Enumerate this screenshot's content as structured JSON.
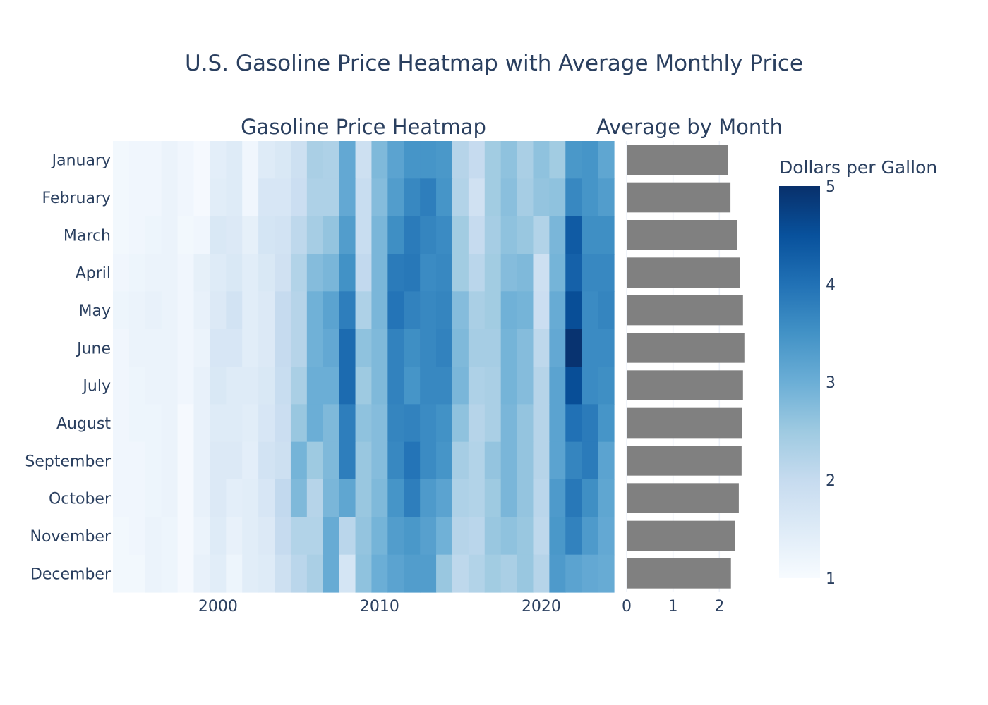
{
  "title": "U.S. Gasoline Price Heatmap with Average Monthly Price",
  "subplot_titles": {
    "heatmap": "Gasoline Price Heatmap",
    "bars": "Average by Month"
  },
  "colorbar": {
    "title": "Dollars per Gallon",
    "range": [
      1,
      5
    ],
    "ticks": [
      "1",
      "2",
      "3",
      "4",
      "5"
    ],
    "colorscale": [
      "#f7fbff",
      "#deebf7",
      "#c6dbef",
      "#9ecae1",
      "#6baed6",
      "#4292c6",
      "#2171b5",
      "#08519c",
      "#08306b"
    ]
  },
  "colors": {
    "bar": "#808080",
    "grid": "#ebf0f8"
  },
  "chart_data": [
    {
      "type": "heatmap",
      "title": "Gasoline Price Heatmap",
      "x_ticks": [
        "2000",
        "2010",
        "2020"
      ],
      "x": [
        1994,
        1995,
        1996,
        1997,
        1998,
        1999,
        2000,
        2001,
        2002,
        2003,
        2004,
        2005,
        2006,
        2007,
        2008,
        2009,
        2010,
        2011,
        2012,
        2013,
        2014,
        2015,
        2016,
        2017,
        2018,
        2019,
        2020,
        2021,
        2022,
        2023,
        2024
      ],
      "y": [
        "January",
        "February",
        "March",
        "April",
        "May",
        "June",
        "July",
        "August",
        "September",
        "October",
        "November",
        "December"
      ],
      "z": [
        [
          1.1,
          1.15,
          1.15,
          1.25,
          1.15,
          1.05,
          1.4,
          1.5,
          1.15,
          1.5,
          1.6,
          1.85,
          2.35,
          2.3,
          3.1,
          1.85,
          2.8,
          3.2,
          3.45,
          3.45,
          3.4,
          2.2,
          2.0,
          2.45,
          2.65,
          2.35,
          2.65,
          2.45,
          3.4,
          3.45,
          3.15
        ],
        [
          1.1,
          1.15,
          1.15,
          1.25,
          1.15,
          1.05,
          1.45,
          1.5,
          1.15,
          1.65,
          1.65,
          1.9,
          2.3,
          2.3,
          3.1,
          1.95,
          2.75,
          3.3,
          3.65,
          3.8,
          3.45,
          2.25,
          1.8,
          2.45,
          2.7,
          2.4,
          2.6,
          2.65,
          3.65,
          3.45,
          3.3
        ],
        [
          1.1,
          1.15,
          1.2,
          1.25,
          1.1,
          1.15,
          1.6,
          1.55,
          1.35,
          1.7,
          1.75,
          2.1,
          2.4,
          2.6,
          3.3,
          1.95,
          2.85,
          3.55,
          3.85,
          3.7,
          3.6,
          2.45,
          2.0,
          2.4,
          2.65,
          2.55,
          2.25,
          2.85,
          4.35,
          3.55,
          3.55
        ],
        [
          1.15,
          1.2,
          1.25,
          1.25,
          1.15,
          1.35,
          1.5,
          1.6,
          1.45,
          1.6,
          1.8,
          2.25,
          2.75,
          2.85,
          3.5,
          2.05,
          2.85,
          3.85,
          3.9,
          3.6,
          3.65,
          2.45,
          2.15,
          2.45,
          2.75,
          2.8,
          1.85,
          2.9,
          4.25,
          3.65,
          3.65
        ],
        [
          1.2,
          1.25,
          1.3,
          1.25,
          1.15,
          1.3,
          1.55,
          1.75,
          1.45,
          1.55,
          2.0,
          2.2,
          2.95,
          3.2,
          3.8,
          2.3,
          2.85,
          3.95,
          3.75,
          3.65,
          3.7,
          2.75,
          2.35,
          2.45,
          2.95,
          2.9,
          1.9,
          3.05,
          4.55,
          3.6,
          3.7
        ],
        [
          1.15,
          1.25,
          1.25,
          1.25,
          1.15,
          1.25,
          1.65,
          1.65,
          1.45,
          1.55,
          2.0,
          2.2,
          2.95,
          3.1,
          4.1,
          2.65,
          2.8,
          3.75,
          3.55,
          3.65,
          3.75,
          2.8,
          2.4,
          2.4,
          2.9,
          2.75,
          2.1,
          3.1,
          4.95,
          3.6,
          3.6
        ],
        [
          1.15,
          1.2,
          1.25,
          1.25,
          1.15,
          1.3,
          1.6,
          1.5,
          1.5,
          1.6,
          1.95,
          2.35,
          3.0,
          3.0,
          4.1,
          2.5,
          2.8,
          3.75,
          3.45,
          3.65,
          3.65,
          2.85,
          2.3,
          2.35,
          2.9,
          2.75,
          2.2,
          3.2,
          4.55,
          3.6,
          3.55
        ],
        [
          1.15,
          1.2,
          1.2,
          1.25,
          1.05,
          1.3,
          1.5,
          1.5,
          1.45,
          1.65,
          1.9,
          2.55,
          3.0,
          2.8,
          3.8,
          2.65,
          2.75,
          3.7,
          3.75,
          3.6,
          3.5,
          2.65,
          2.2,
          2.35,
          2.85,
          2.6,
          2.2,
          3.2,
          4.0,
          3.85,
          3.45
        ],
        [
          1.15,
          1.15,
          1.2,
          1.25,
          1.05,
          1.3,
          1.55,
          1.55,
          1.4,
          1.75,
          1.85,
          2.9,
          2.5,
          2.8,
          3.8,
          2.55,
          2.75,
          3.65,
          3.95,
          3.6,
          3.45,
          2.4,
          2.25,
          2.6,
          2.85,
          2.6,
          2.2,
          3.2,
          3.7,
          3.85,
          3.2
        ],
        [
          1.15,
          1.15,
          1.2,
          1.25,
          1.05,
          1.3,
          1.55,
          1.4,
          1.45,
          1.65,
          2.05,
          2.8,
          2.2,
          2.85,
          3.15,
          2.55,
          2.8,
          3.45,
          3.8,
          3.35,
          3.2,
          2.3,
          2.25,
          2.5,
          2.85,
          2.6,
          2.15,
          3.35,
          3.9,
          3.55,
          3.15
        ],
        [
          1.1,
          1.15,
          1.25,
          1.2,
          1.05,
          1.25,
          1.5,
          1.3,
          1.45,
          1.55,
          2.0,
          2.25,
          2.25,
          3.05,
          2.15,
          2.6,
          2.9,
          3.3,
          3.4,
          3.25,
          2.95,
          2.2,
          2.15,
          2.55,
          2.65,
          2.55,
          2.1,
          3.4,
          3.75,
          3.35,
          3.1
        ],
        [
          1.1,
          1.1,
          1.25,
          1.2,
          1.05,
          1.3,
          1.45,
          1.2,
          1.45,
          1.5,
          1.85,
          2.15,
          2.35,
          3.05,
          1.7,
          2.65,
          3.0,
          3.2,
          3.3,
          3.3,
          2.55,
          2.1,
          2.25,
          2.45,
          2.35,
          2.55,
          2.2,
          3.35,
          3.2,
          3.1,
          3.05
        ]
      ]
    },
    {
      "type": "bar",
      "orientation": "horizontal",
      "title": "Average by Month",
      "categories": [
        "January",
        "February",
        "March",
        "April",
        "May",
        "June",
        "July",
        "August",
        "September",
        "October",
        "November",
        "December"
      ],
      "values": [
        2.19,
        2.24,
        2.38,
        2.44,
        2.51,
        2.54,
        2.51,
        2.49,
        2.48,
        2.42,
        2.33,
        2.25
      ],
      "x_ticks": [
        "0",
        "1",
        "2"
      ],
      "xlim": [
        0,
        3.0
      ]
    }
  ]
}
